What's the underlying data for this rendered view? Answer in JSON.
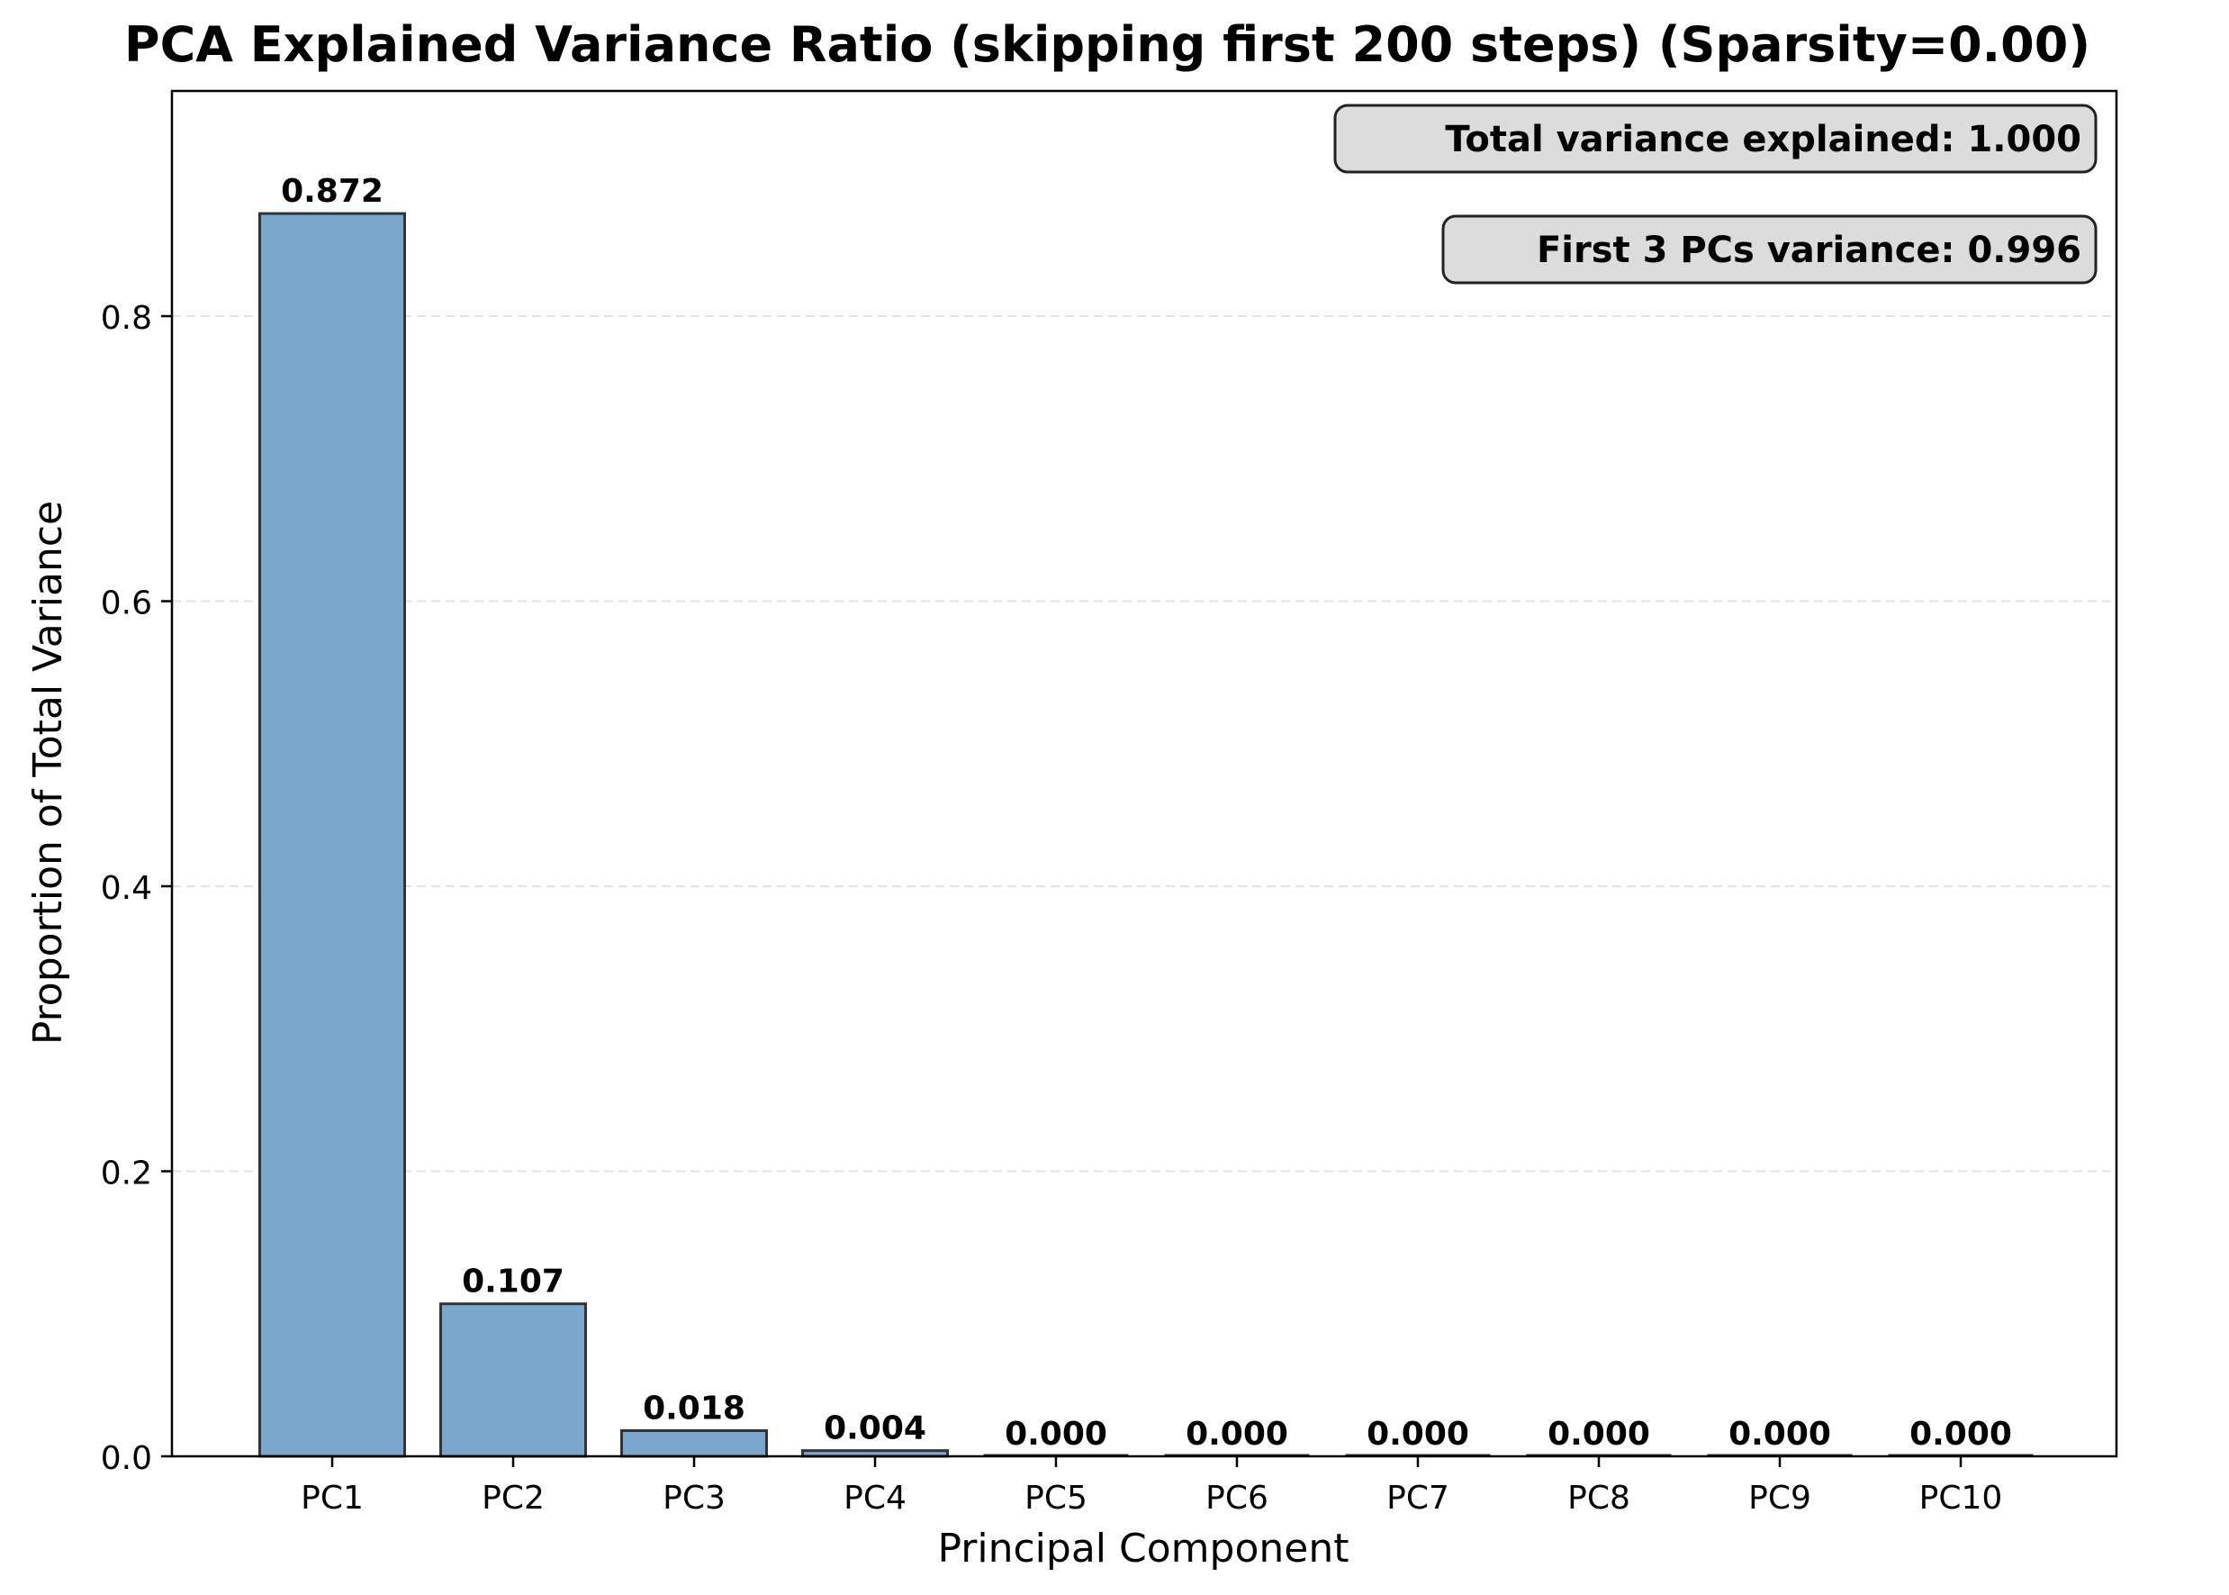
{
  "chart_data": {
    "type": "bar",
    "title": "PCA Explained Variance Ratio (skipping first 200 steps) (Sparsity=0.00)",
    "xlabel": "Principal Component",
    "ylabel": "Proportion of Total Variance",
    "categories": [
      "PC1",
      "PC2",
      "PC3",
      "PC4",
      "PC5",
      "PC6",
      "PC7",
      "PC8",
      "PC9",
      "PC10"
    ],
    "values": [
      0.872,
      0.107,
      0.018,
      0.004,
      0.0,
      0.0,
      0.0,
      0.0,
      0.0,
      0.0
    ],
    "value_labels": [
      "0.872",
      "0.107",
      "0.018",
      "0.004",
      "0.000",
      "0.000",
      "0.000",
      "0.000",
      "0.000",
      "0.000"
    ],
    "ylim": [
      0,
      0.958
    ],
    "yticks": [
      0.0,
      0.2,
      0.4,
      0.6,
      0.8
    ],
    "ytick_labels": [
      "0.0",
      "0.2",
      "0.4",
      "0.6",
      "0.8"
    ],
    "grid": "y, dashed",
    "bar_color": "#7ba7cc",
    "bar_edge_color": "#333333",
    "annotations": [
      "Total variance explained: 1.000",
      "First 3 PCs variance: 0.996"
    ],
    "annotation_placement": "top-right",
    "annotation_box_color": "#dcdcdc"
  }
}
